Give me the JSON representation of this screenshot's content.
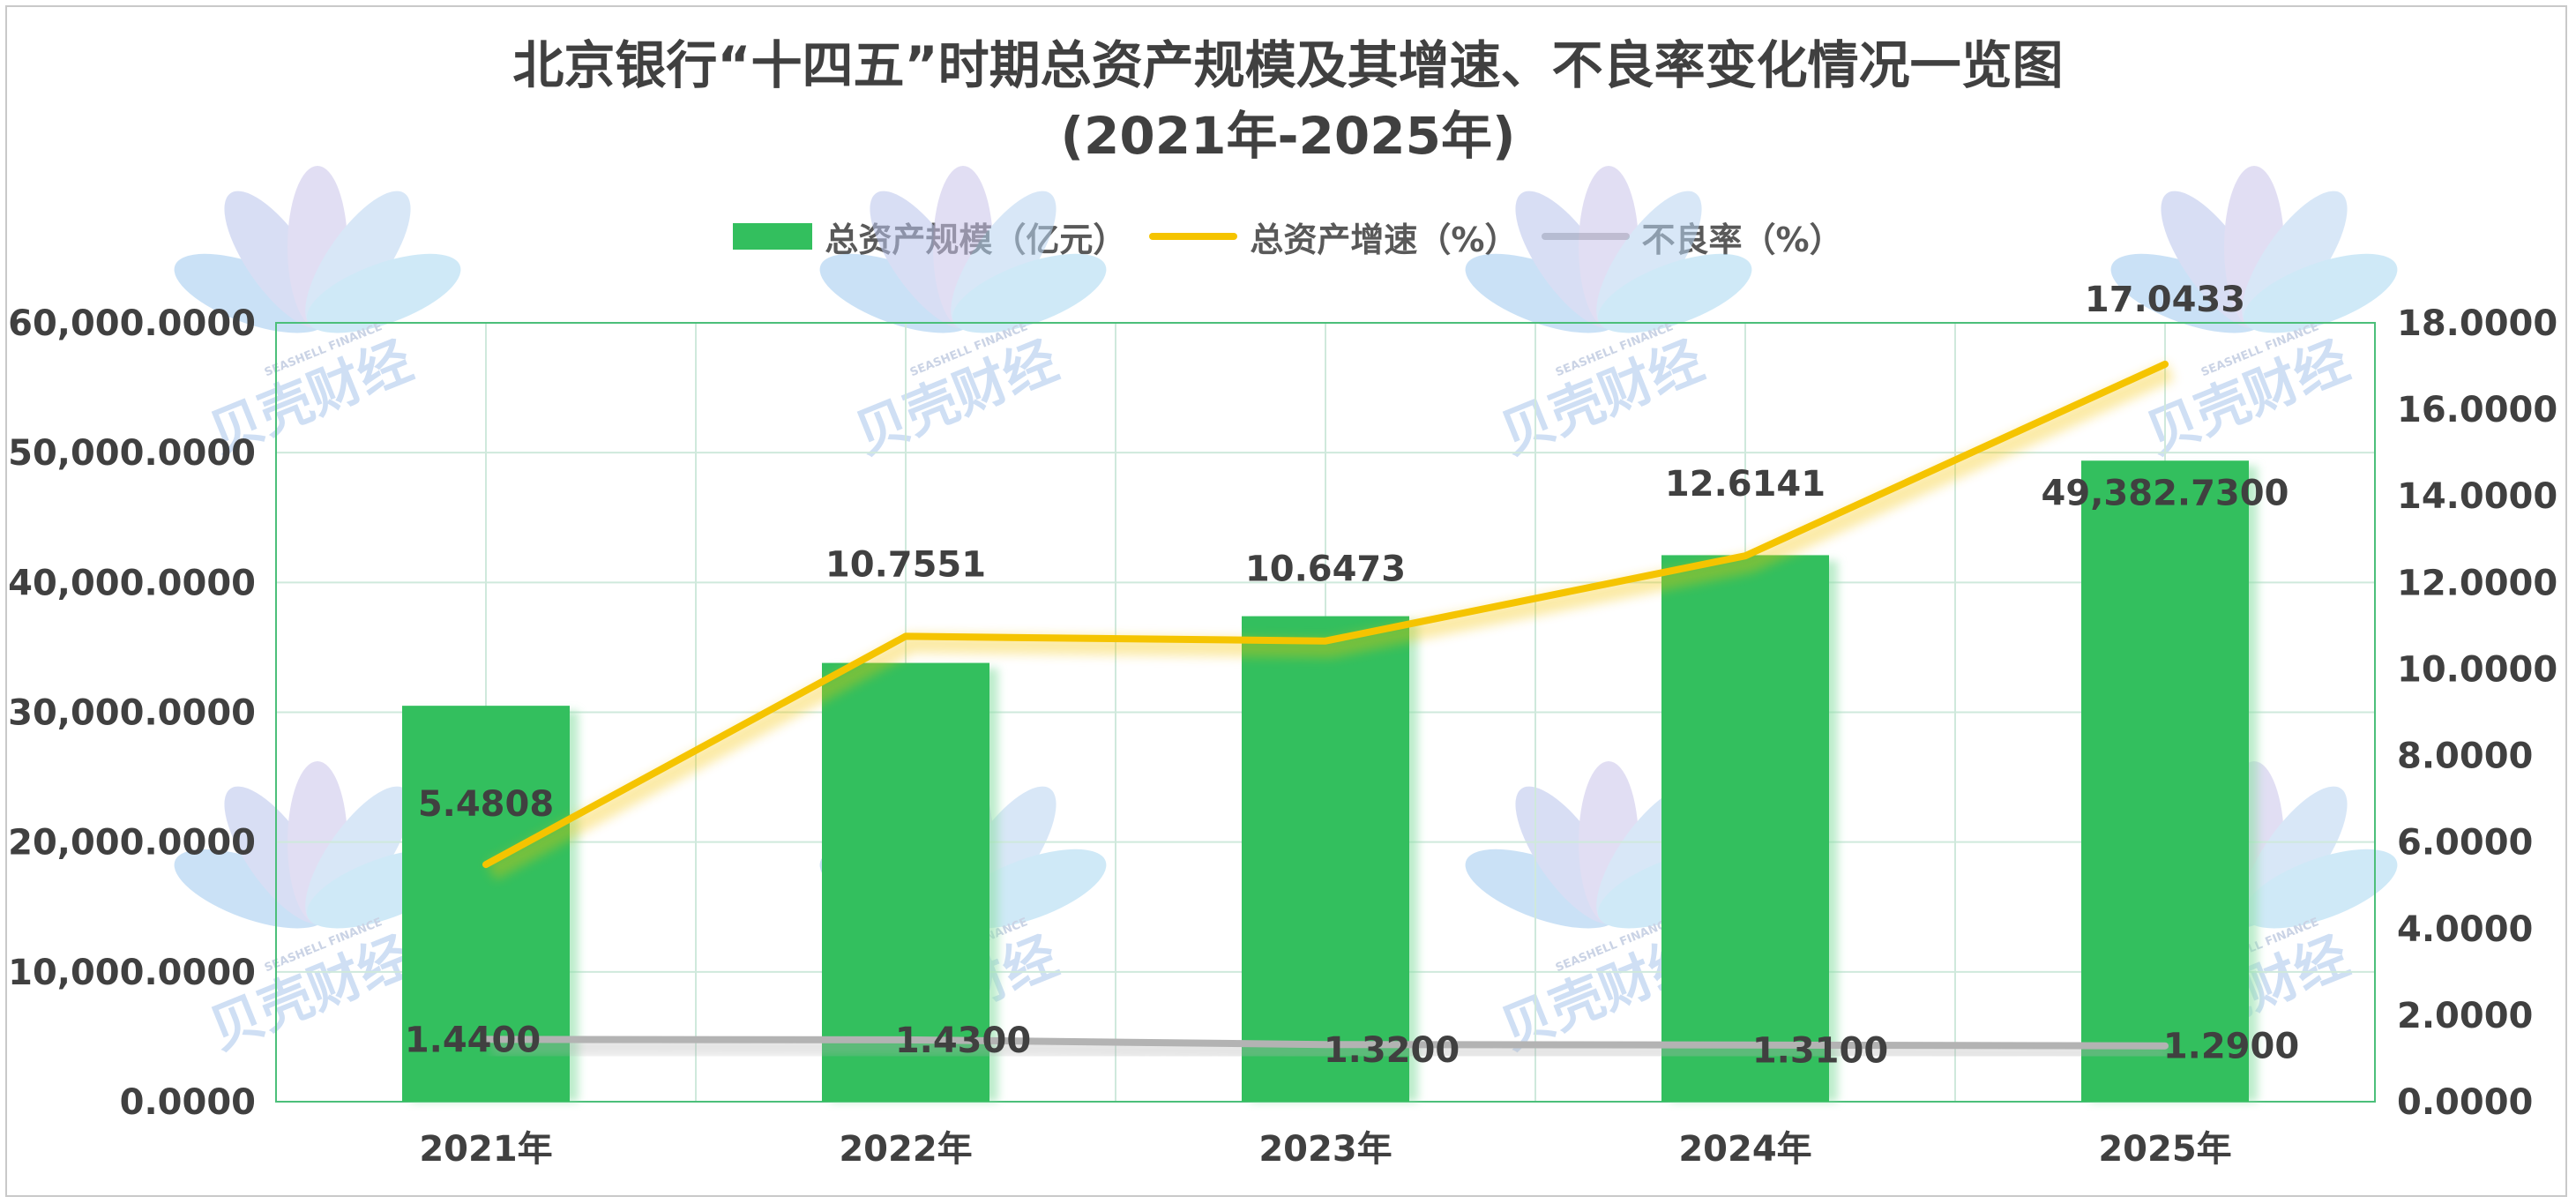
{
  "title_line1": "北京银行“十四五”时期总资产规模及其增速、不良率变化情况一览图",
  "title_line2": "(2021年-2025年)",
  "watermark": {
    "brand": "贝壳财经",
    "brand_en": "SEASHELL FINANCE"
  },
  "colors": {
    "bar": "#33bf5e",
    "growth_line": "#f5c400",
    "npl_line": "#b3b3b3",
    "grid": "#cfe9dc",
    "plot_border": "#4cbf7a"
  },
  "chart_data": {
    "type": "bar",
    "categories": [
      "2021年",
      "2022年",
      "2023年",
      "2024年",
      "2025年"
    ],
    "series": [
      {
        "name": "总资产规模（亿元）",
        "type": "bar",
        "axis": "left",
        "values": [
          30500,
          33800,
          37400,
          42100,
          49382.73
        ],
        "labels": [
          "",
          "",
          "",
          "",
          "49,382.7300"
        ]
      },
      {
        "name": "总资产增速（%）",
        "type": "line",
        "axis": "right",
        "values": [
          5.4808,
          10.7551,
          10.6473,
          12.6141,
          17.0433
        ],
        "labels": [
          "5.4808",
          "10.7551",
          "10.6473",
          "12.6141",
          "17.0433"
        ]
      },
      {
        "name": "不良率（%）",
        "type": "line",
        "axis": "right",
        "values": [
          1.44,
          1.43,
          1.32,
          1.31,
          1.29
        ],
        "labels": [
          "1.4400",
          "1.4300",
          "1.3200",
          "1.3100",
          "1.2900"
        ]
      }
    ],
    "y_left": {
      "min": 0,
      "max": 60000,
      "ticks": [
        "0.0000",
        "10,000.0000",
        "20,000.0000",
        "30,000.0000",
        "40,000.0000",
        "50,000.0000",
        "60,000.0000"
      ]
    },
    "y_right": {
      "min": 0,
      "max": 18,
      "ticks": [
        "0.0000",
        "2.0000",
        "4.0000",
        "6.0000",
        "8.0000",
        "10.0000",
        "12.0000",
        "14.0000",
        "16.0000",
        "18.0000"
      ]
    },
    "grid": true,
    "legend_position": "top"
  }
}
